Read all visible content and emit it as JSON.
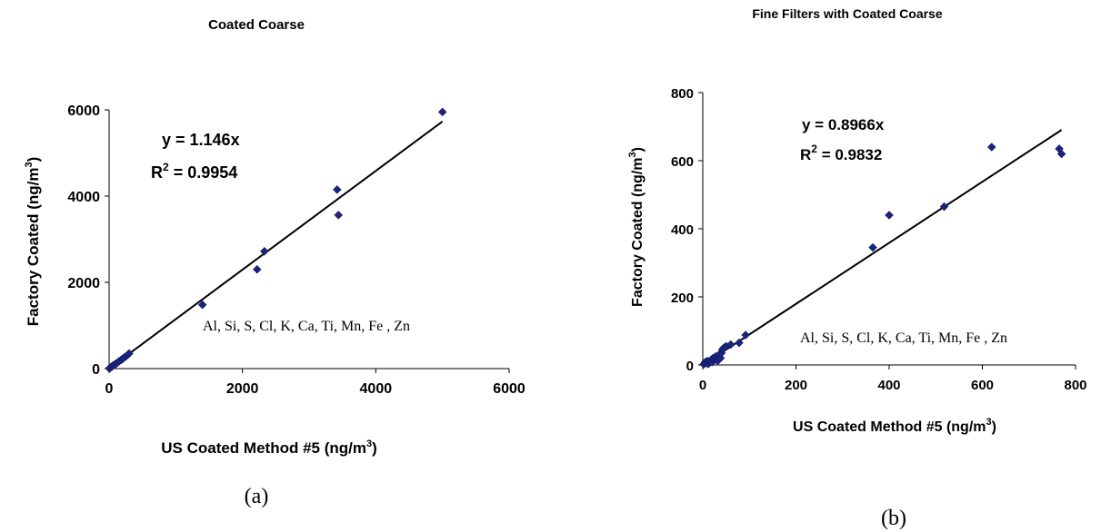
{
  "chart_data": [
    {
      "type": "scatter",
      "title": "Coated Coarse",
      "caption": "(a)",
      "xlabel_main": "US  Coated Method #5  (ng/m",
      "xlabel_sup": "3",
      "xlabel_end": ")",
      "ylabel_main": "Factory Coated  (ng/m",
      "ylabel_sup": "3",
      "ylabel_end": ")",
      "xlim": [
        0,
        6000
      ],
      "ylim": [
        0,
        6000
      ],
      "xticks": [
        0,
        2000,
        4000,
        6000
      ],
      "yticks": [
        0,
        2000,
        4000,
        6000
      ],
      "xtick_labels": [
        "0",
        "2000",
        "4000",
        "6000"
      ],
      "ytick_labels": [
        "0",
        "2000",
        "4000",
        "6000"
      ],
      "equation": "y = 1.146x",
      "r2_main": "R",
      "r2_sup": "2",
      "r2_value": " = 0.9954",
      "annotation": "Al, Si, S, Cl, K, Ca, Ti, Mn, Fe , Zn",
      "fit_slope": 1.146,
      "marker_color": "#1a237e",
      "points": [
        [
          5,
          5
        ],
        [
          10,
          12
        ],
        [
          20,
          18
        ],
        [
          30,
          35
        ],
        [
          40,
          45
        ],
        [
          50,
          60
        ],
        [
          60,
          70
        ],
        [
          80,
          90
        ],
        [
          100,
          110
        ],
        [
          120,
          130
        ],
        [
          150,
          170
        ],
        [
          180,
          200
        ],
        [
          200,
          220
        ],
        [
          220,
          250
        ],
        [
          250,
          280
        ],
        [
          280,
          320
        ],
        [
          300,
          350
        ],
        [
          1400,
          1480
        ],
        [
          2220,
          2300
        ],
        [
          2330,
          2720
        ],
        [
          3420,
          4150
        ],
        [
          3440,
          3560
        ],
        [
          5000,
          5950
        ]
      ]
    },
    {
      "type": "scatter",
      "title": "Fine Filters  with Coated Coarse",
      "caption": "(b)",
      "xlabel_main": "US Coated Method #5 (ng/m",
      "xlabel_sup": "3",
      "xlabel_end": ")",
      "ylabel_main": "Factory Coated (ng/m",
      "ylabel_sup": "3",
      "ylabel_end": ")",
      "xlim": [
        0,
        800
      ],
      "ylim": [
        0,
        800
      ],
      "xticks": [
        0,
        200,
        400,
        600,
        800
      ],
      "yticks": [
        0,
        200,
        400,
        600,
        800
      ],
      "xtick_labels": [
        "0",
        "200",
        "400",
        "600",
        "800"
      ],
      "ytick_labels": [
        "0",
        "200",
        "400",
        "600",
        "800"
      ],
      "equation": "y = 0.8966x",
      "r2_main": "R",
      "r2_sup": "2",
      "r2_value": " = 0.9832",
      "annotation": "Al, Si, S, Cl, K, Ca, Ti, Mn, Fe , Zn",
      "fit_slope": 0.8966,
      "marker_color": "#1a237e",
      "points": [
        [
          2,
          2
        ],
        [
          5,
          8
        ],
        [
          8,
          5
        ],
        [
          10,
          12
        ],
        [
          12,
          3
        ],
        [
          15,
          10
        ],
        [
          18,
          15
        ],
        [
          20,
          8
        ],
        [
          22,
          20
        ],
        [
          25,
          18
        ],
        [
          28,
          25
        ],
        [
          30,
          22
        ],
        [
          32,
          12
        ],
        [
          35,
          30
        ],
        [
          38,
          20
        ],
        [
          40,
          35
        ],
        [
          42,
          45
        ],
        [
          45,
          50
        ],
        [
          50,
          55
        ],
        [
          60,
          60
        ],
        [
          78,
          65
        ],
        [
          92,
          88
        ],
        [
          365,
          345
        ],
        [
          400,
          440
        ],
        [
          518,
          465
        ],
        [
          620,
          640
        ],
        [
          765,
          635
        ],
        [
          770,
          620
        ]
      ]
    }
  ]
}
